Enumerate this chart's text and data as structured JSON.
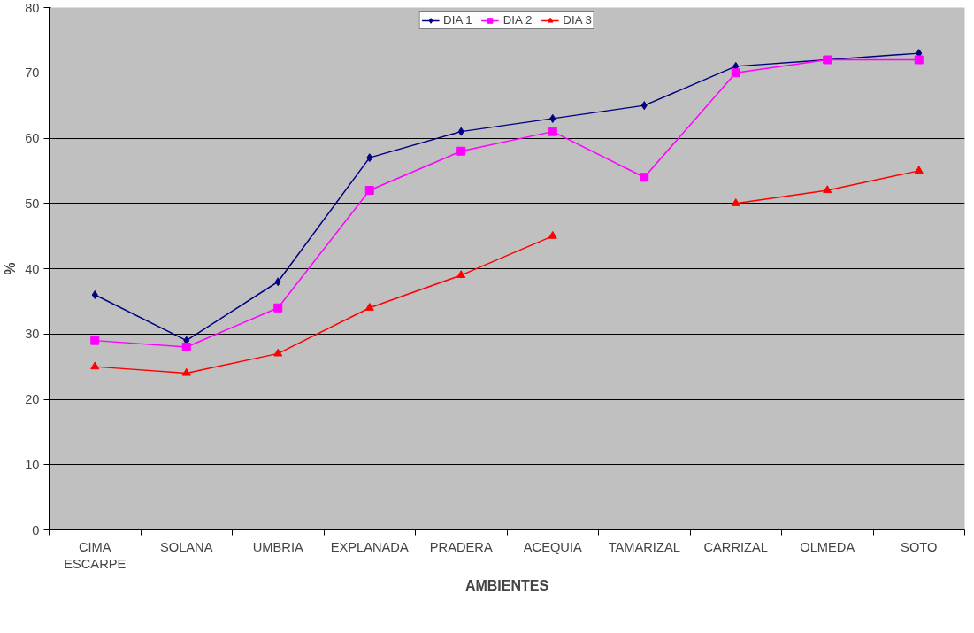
{
  "chart_data": {
    "type": "line",
    "xlabel": "AMBIENTES",
    "ylabel": "%",
    "categories": [
      "CIMA ESCARPE",
      "SOLANA",
      "UMBRIA",
      "EXPLANADA",
      "PRADERA",
      "ACEQUIA",
      "TAMARIZAL",
      "CARRIZAL",
      "OLMEDA",
      "SOTO"
    ],
    "series": [
      {
        "name": "DIA 1",
        "color": "#000080",
        "marker": "diamond",
        "values": [
          36,
          29,
          38,
          57,
          61,
          63,
          65,
          71,
          72,
          73
        ]
      },
      {
        "name": "DIA 2",
        "color": "#ff00ff",
        "marker": "square",
        "values": [
          29,
          28,
          34,
          52,
          58,
          61,
          54,
          70,
          72,
          72
        ]
      },
      {
        "name": "DIA 3",
        "color": "#ff0000",
        "marker": "triangle",
        "values": [
          25,
          24,
          27,
          34,
          39,
          45,
          null,
          50,
          52,
          55
        ]
      }
    ],
    "ylim": [
      0,
      80
    ],
    "yticks": [
      0,
      10,
      20,
      30,
      40,
      50,
      60,
      70,
      80
    ],
    "grid": "y",
    "legend": "top",
    "line_style": "solid"
  }
}
